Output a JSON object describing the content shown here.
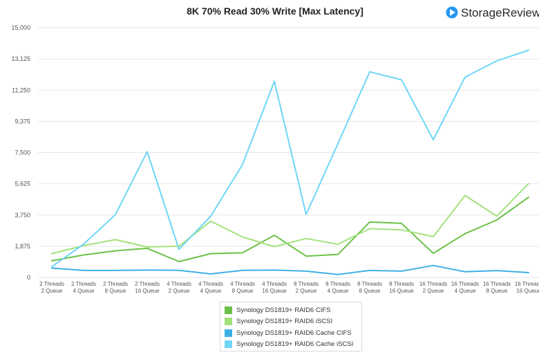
{
  "brand": {
    "name": "StorageReview",
    "logo_color": "#2196f3"
  },
  "chart_data": {
    "type": "line",
    "title": "8K 70% Read 30% Write [Max Latency]",
    "xlabel": "",
    "ylabel": "",
    "ylim": [
      0,
      15000
    ],
    "yticks": [
      "0",
      "1,875",
      "3,750",
      "5,625",
      "7,500",
      "9,375",
      "11,250",
      "13,125",
      "15,000"
    ],
    "ytick_values": [
      0,
      1875,
      3750,
      5625,
      7500,
      9375,
      11250,
      13125,
      15000
    ],
    "grid": true,
    "legend_position": "bottom",
    "categories": [
      [
        "2 Threads",
        "2 Queue"
      ],
      [
        "2 Threads",
        "4 Queue"
      ],
      [
        "2 Threads",
        "8 Queue"
      ],
      [
        "2 Threads",
        "16 Queue"
      ],
      [
        "4 Threads",
        "2 Queue"
      ],
      [
        "4 Threads",
        "4 Queue"
      ],
      [
        "4 Threads",
        "8 Queue"
      ],
      [
        "4 Threads",
        "16 Queue"
      ],
      [
        "8 Threads",
        "2 Queue"
      ],
      [
        "8 Threads",
        "4 Queue"
      ],
      [
        "8 Threads",
        "8 Queue"
      ],
      [
        "8 Threads",
        "16 Queue"
      ],
      [
        "16 Threads",
        "2 Queue"
      ],
      [
        "16 Threads",
        "4 Queue"
      ],
      [
        "16 Threads",
        "8 Queue"
      ],
      [
        "16 Threads",
        "16 Queue"
      ]
    ],
    "series": [
      {
        "name": "Synology DS1819+ RAID6 CIFS",
        "color": "#6cc046",
        "values": [
          1000,
          1350,
          1600,
          1750,
          950,
          1430,
          1480,
          2530,
          1280,
          1380,
          3330,
          3250,
          1450,
          2630,
          3450,
          4820
        ]
      },
      {
        "name": "Synology DS1819+ RAID6 iSCSI",
        "color": "#a3e27b",
        "values": [
          1430,
          1910,
          2270,
          1830,
          1880,
          3380,
          2430,
          1850,
          2340,
          1990,
          2930,
          2860,
          2450,
          4920,
          3680,
          5640
        ]
      },
      {
        "name": "Synology DS1819+ RAID6 Cache CIFS",
        "color": "#3fb0e6",
        "values": [
          560,
          420,
          420,
          440,
          430,
          210,
          430,
          440,
          380,
          180,
          420,
          380,
          720,
          340,
          410,
          290
        ]
      },
      {
        "name": "Synology DS1819+ RAID6 Cache iSCSI",
        "color": "#6dd6f7",
        "values": [
          640,
          2000,
          3770,
          7550,
          1690,
          3680,
          6780,
          11780,
          3780,
          8030,
          12350,
          11870,
          8270,
          12030,
          13010,
          13650
        ]
      }
    ]
  }
}
